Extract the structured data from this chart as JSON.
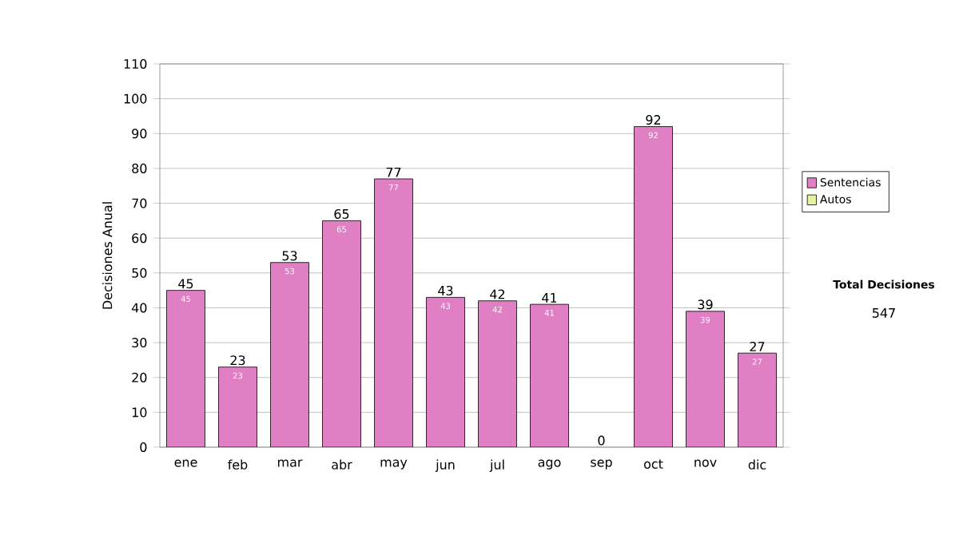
{
  "chart_data": {
    "type": "bar",
    "stacked": true,
    "ylabel": "Decisiones Anual",
    "categories": [
      "ene",
      "feb",
      "mar",
      "abr",
      "may",
      "jun",
      "jul",
      "ago",
      "sep",
      "oct",
      "nov",
      "dic"
    ],
    "series": [
      {
        "name": "Sentencias",
        "color": "#e07fc4",
        "values": [
          45,
          23,
          53,
          65,
          77,
          43,
          42,
          41,
          0,
          92,
          39,
          27
        ],
        "value_labels": [
          "45",
          "23",
          "53",
          "65",
          "77",
          "43",
          "42",
          "41",
          null,
          "92",
          "39",
          "27"
        ]
      },
      {
        "name": "Autos",
        "color": "#e6f2a0",
        "values": [
          0,
          0,
          0,
          0,
          0,
          0,
          0,
          0,
          0,
          0,
          0,
          0
        ]
      }
    ],
    "totals": [
      "45",
      "23",
      "53",
      "65",
      "77",
      "43",
      "42",
      "41",
      "0",
      "92",
      "39",
      "27"
    ],
    "ylim": [
      0,
      110
    ],
    "yticks": [
      0,
      10,
      20,
      30,
      40,
      50,
      60,
      70,
      80,
      90,
      100,
      110
    ],
    "grid": "y",
    "legend": "right",
    "annotations": [
      "Total Decisiones",
      "547"
    ]
  }
}
